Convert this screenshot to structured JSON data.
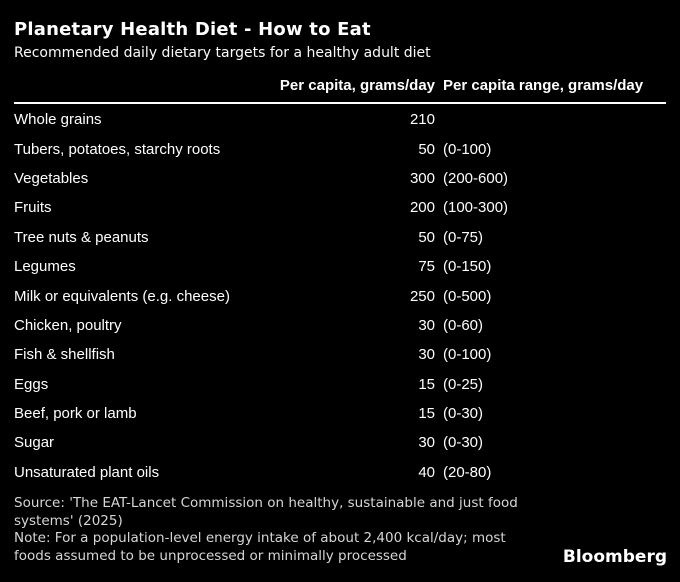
{
  "title": "Planetary Health Diet - How to Eat",
  "subtitle": "Recommended daily dietary targets for a healthy adult diet",
  "colors": {
    "background": "#000000",
    "text": "#ffffff",
    "footnote_text": "#d6d6d6",
    "rule": "#ffffff"
  },
  "chart_data": {
    "type": "table",
    "title": "Planetary Health Diet - How to Eat",
    "subtitle": "Recommended daily dietary targets for a healthy adult diet",
    "columns": [
      "Per capita, grams/day",
      "Per capita range, grams/day"
    ],
    "rows": [
      {
        "label": "Whole grains",
        "value": "210",
        "range": ""
      },
      {
        "label": "Tubers, potatoes, starchy roots",
        "value": "50",
        "range": "(0-100)"
      },
      {
        "label": "Vegetables",
        "value": "300",
        "range": "(200-600)"
      },
      {
        "label": "Fruits",
        "value": "200",
        "range": "(100-300)"
      },
      {
        "label": "Tree nuts & peanuts",
        "value": "50",
        "range": "(0-75)"
      },
      {
        "label": "Legumes",
        "value": "75",
        "range": "(0-150)"
      },
      {
        "label": "Milk or equivalents (e.g. cheese)",
        "value": "250",
        "range": "(0-500)"
      },
      {
        "label": "Chicken, poultry",
        "value": "30",
        "range": "(0-60)"
      },
      {
        "label": "Fish & shellfish",
        "value": "30",
        "range": "(0-100)"
      },
      {
        "label": "Eggs",
        "value": "15",
        "range": "(0-25)"
      },
      {
        "label": "Beef, pork or lamb",
        "value": "15",
        "range": "(0-30)"
      },
      {
        "label": "Sugar",
        "value": "30",
        "range": "(0-30)"
      },
      {
        "label": "Unsaturated plant oils",
        "value": "40",
        "range": "(20-80)"
      }
    ]
  },
  "header": {
    "col_value": "Per capita, grams/day",
    "col_range": "Per capita range, grams/day"
  },
  "footer": {
    "source": "Source: 'The EAT-Lancet Commission on healthy, sustainable and just food systems' (2025)",
    "note": "Note: For a population-level energy intake of about 2,400 kcal/day; most foods assumed to be unprocessed or minimally processed",
    "brand": "Bloomberg"
  }
}
